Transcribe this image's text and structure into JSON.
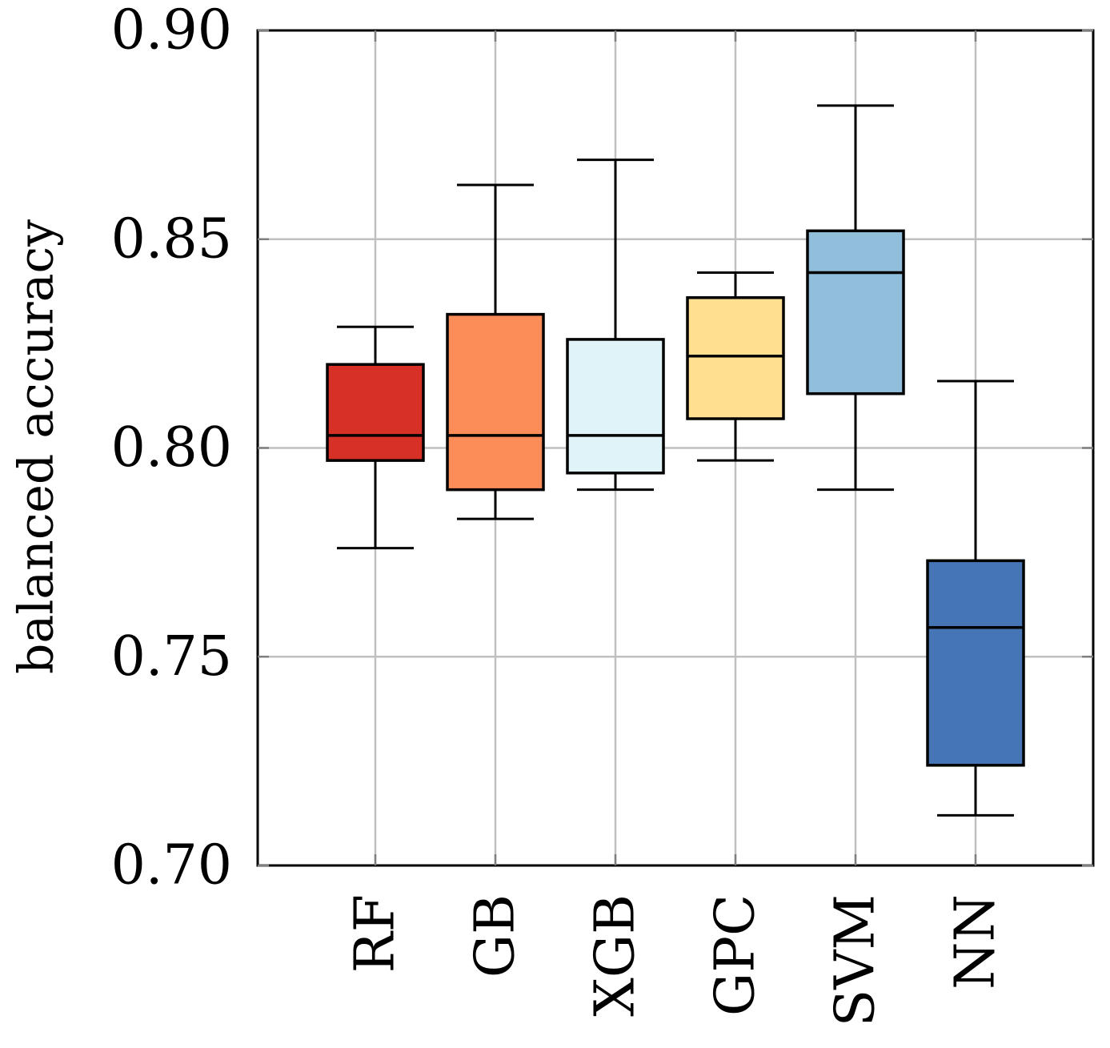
{
  "chart_data": {
    "type": "box",
    "title": "",
    "xlabel": "",
    "ylabel": "balanced accuracy",
    "ylim": [
      0.7,
      0.9
    ],
    "yticks": [
      0.7,
      0.75,
      0.8,
      0.85,
      0.9
    ],
    "ytick_labels": [
      "0.70",
      "0.75",
      "0.80",
      "0.85",
      "0.90"
    ],
    "grid": true,
    "categories": [
      "RF",
      "GB",
      "XGB",
      "GPC",
      "SVM",
      "NN"
    ],
    "boxes": [
      {
        "name": "RF",
        "whisker_low": 0.776,
        "q1": 0.797,
        "median": 0.803,
        "q3": 0.82,
        "whisker_high": 0.829,
        "color": "#d73027"
      },
      {
        "name": "GB",
        "whisker_low": 0.783,
        "q1": 0.79,
        "median": 0.803,
        "q3": 0.832,
        "whisker_high": 0.863,
        "color": "#fc8d59"
      },
      {
        "name": "XGB",
        "whisker_low": 0.79,
        "q1": 0.794,
        "median": 0.803,
        "q3": 0.826,
        "whisker_high": 0.869,
        "color": "#e0f3f8"
      },
      {
        "name": "GPC",
        "whisker_low": 0.797,
        "q1": 0.807,
        "median": 0.822,
        "q3": 0.836,
        "whisker_high": 0.842,
        "color": "#fee090"
      },
      {
        "name": "SVM",
        "whisker_low": 0.79,
        "q1": 0.813,
        "median": 0.842,
        "q3": 0.852,
        "whisker_high": 0.882,
        "color": "#91bfdb"
      },
      {
        "name": "NN",
        "whisker_low": 0.712,
        "q1": 0.724,
        "median": 0.757,
        "q3": 0.773,
        "whisker_high": 0.816,
        "color": "#4575b4"
      }
    ]
  }
}
